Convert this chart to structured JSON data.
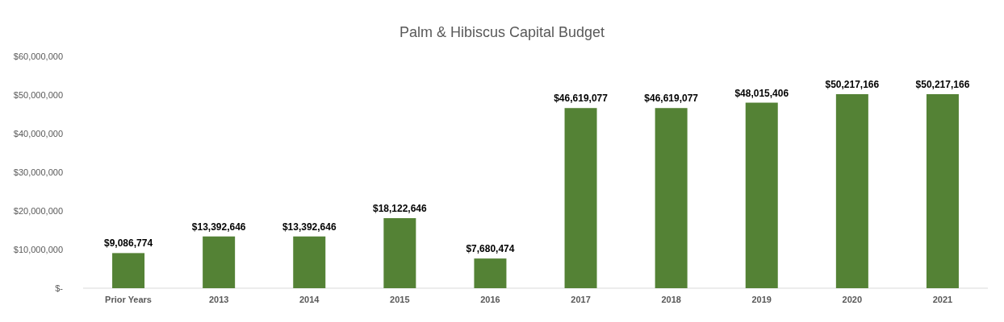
{
  "chart_data": {
    "type": "bar",
    "title": "Palm & Hibiscus Capital Budget",
    "categories": [
      "Prior Years",
      "2013",
      "2014",
      "2015",
      "2016",
      "2017",
      "2018",
      "2019",
      "2020",
      "2021"
    ],
    "values": [
      9086774,
      13392646,
      13392646,
      18122646,
      7680474,
      46619077,
      46619077,
      48015406,
      50217166,
      50217166
    ],
    "value_labels": [
      "$9,086,774",
      "$13,392,646",
      "$13,392,646",
      "$18,122,646",
      "$7,680,474",
      "$46,619,077",
      "$46,619,077",
      "$48,015,406",
      "$50,217,166",
      "$50,217,166"
    ],
    "color": "#548235",
    "ylim": [
      0,
      60000000
    ],
    "yticks": [
      {
        "value": 0,
        "label": "$-"
      },
      {
        "value": 10000000,
        "label": "$10,000,000"
      },
      {
        "value": 20000000,
        "label": "$20,000,000"
      },
      {
        "value": 30000000,
        "label": "$30,000,000"
      },
      {
        "value": 40000000,
        "label": "$40,000,000"
      },
      {
        "value": 50000000,
        "label": "$50,000,000"
      },
      {
        "value": 60000000,
        "label": "$60,000,000"
      }
    ],
    "grid": false
  }
}
